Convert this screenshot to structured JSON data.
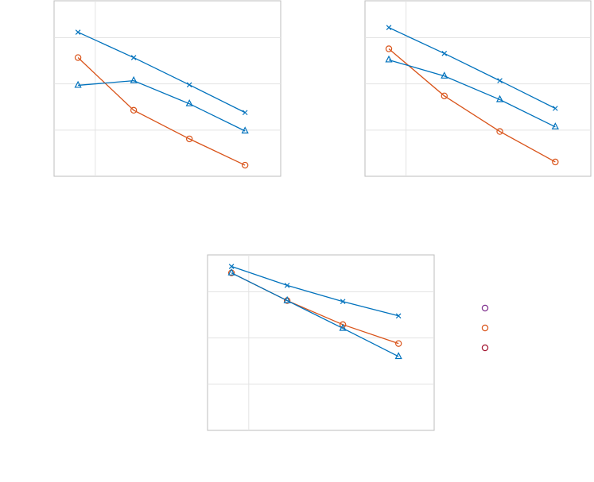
{
  "chart_data": [
    {
      "type": "line",
      "x": [
        1,
        2,
        3,
        4
      ],
      "xlim": [
        0.57,
        4.64
      ],
      "xticks": [
        1.31
      ],
      "ylim": [
        0,
        3.8
      ],
      "yticks": [
        1,
        2,
        3
      ],
      "grid": true,
      "series": [
        {
          "color": "#0072bd",
          "marker": "x",
          "values": [
            3.12,
            2.57,
            1.98,
            1.38
          ]
        },
        {
          "color": "#d95319",
          "marker": "o",
          "values": [
            2.57,
            1.43,
            0.81,
            0.24
          ]
        },
        {
          "color": "#0072bd",
          "marker": "triangle",
          "values": [
            1.97,
            2.07,
            1.57,
            0.98
          ]
        }
      ]
    },
    {
      "type": "line",
      "x": [
        1,
        2,
        3,
        4
      ],
      "xlim": [
        0.57,
        4.64
      ],
      "xticks": [
        1.31
      ],
      "ylim": [
        0,
        3.8
      ],
      "yticks": [
        1,
        2,
        3
      ],
      "grid": true,
      "series": [
        {
          "color": "#0072bd",
          "marker": "x",
          "values": [
            3.22,
            2.66,
            2.07,
            1.47
          ]
        },
        {
          "color": "#d95319",
          "marker": "o",
          "values": [
            2.76,
            1.74,
            0.97,
            0.31
          ]
        },
        {
          "color": "#0072bd",
          "marker": "triangle",
          "values": [
            2.52,
            2.17,
            1.66,
            1.07
          ]
        }
      ]
    },
    {
      "type": "line",
      "x": [
        1,
        2,
        3,
        4
      ],
      "xlim": [
        0.57,
        4.64
      ],
      "xticks": [
        1.31
      ],
      "ylim": [
        0,
        3.8
      ],
      "yticks": [
        1,
        2,
        3
      ],
      "grid": true,
      "series": [
        {
          "color": "#0072bd",
          "marker": "x",
          "values": [
            3.55,
            3.14,
            2.79,
            2.48
          ]
        },
        {
          "color": "#d95319",
          "marker": "o",
          "values": [
            3.41,
            2.81,
            2.29,
            1.88
          ]
        },
        {
          "color": "#0072bd",
          "marker": "triangle",
          "values": [
            3.41,
            2.81,
            2.21,
            1.6
          ]
        }
      ]
    }
  ],
  "legend": {
    "markers": [
      {
        "color": "#7e2f8e",
        "marker": "o"
      },
      {
        "color": "#d95319",
        "marker": "o"
      },
      {
        "color": "#a2142f",
        "marker": "o"
      }
    ]
  }
}
